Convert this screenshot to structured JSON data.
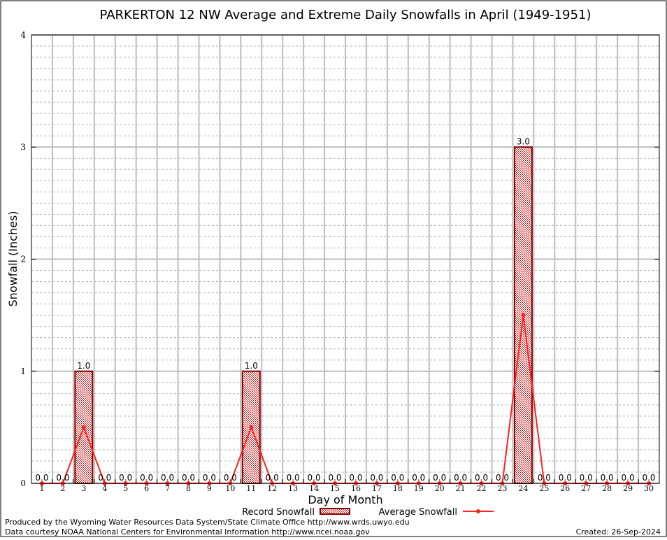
{
  "chart_data": {
    "type": "bar",
    "title": "PARKERTON 12 NW Average and Extreme Daily Snowfalls in April (1949-1951)",
    "xlabel": "Day of Month",
    "ylabel": "Snowfall (Inches)",
    "ylim": [
      0,
      4
    ],
    "yticks": [
      "0",
      "1",
      "2",
      "3",
      "4"
    ],
    "grid": true,
    "categories": [
      1,
      2,
      3,
      4,
      5,
      6,
      7,
      8,
      9,
      10,
      11,
      12,
      13,
      14,
      15,
      16,
      17,
      18,
      19,
      20,
      21,
      22,
      23,
      24,
      25,
      26,
      27,
      28,
      29,
      30
    ],
    "series": [
      {
        "name": "Record Snowfall",
        "type": "bar",
        "color": "#8b0000",
        "values": [
          0,
          0,
          1.0,
          0,
          0,
          0,
          0,
          0,
          0,
          0,
          1.0,
          0,
          0,
          0,
          0,
          0,
          0,
          0,
          0,
          0,
          0,
          0,
          0,
          3.0,
          0,
          0,
          0,
          0,
          0,
          0
        ],
        "labels": [
          "0.0",
          "0.0",
          "1.0",
          "0.0",
          "0.0",
          "0.0",
          "0.0",
          "0.0",
          "0.0",
          "0.0",
          "1.0",
          "0.0",
          "0.0",
          "0.0",
          "0.0",
          "0.0",
          "0.0",
          "0.0",
          "0.0",
          "0.0",
          "0.0",
          "0.0",
          "0.0",
          "3.0",
          "0.0",
          "0.0",
          "0.0",
          "0.0",
          "0.0",
          "0.0"
        ]
      },
      {
        "name": "Average Snowfall",
        "type": "line",
        "color": "#ff2020",
        "values": [
          0,
          0,
          0.5,
          0,
          0,
          0,
          0,
          0,
          0,
          0,
          0.5,
          0,
          0,
          0,
          0,
          0,
          0,
          0,
          0,
          0,
          0,
          0,
          0,
          1.5,
          0,
          0,
          0,
          0,
          0,
          0
        ]
      }
    ],
    "legend_position": "bottom"
  },
  "footer": {
    "produced_by": "Produced by the Wyoming Water Resources Data System/State Climate Office http://www.wrds.uwyo.edu",
    "courtesy": "Data courtesy NOAA National Centers for Environmental Information http://www.ncei.noaa.gov",
    "created": "Created: 26-Sep-2024"
  }
}
